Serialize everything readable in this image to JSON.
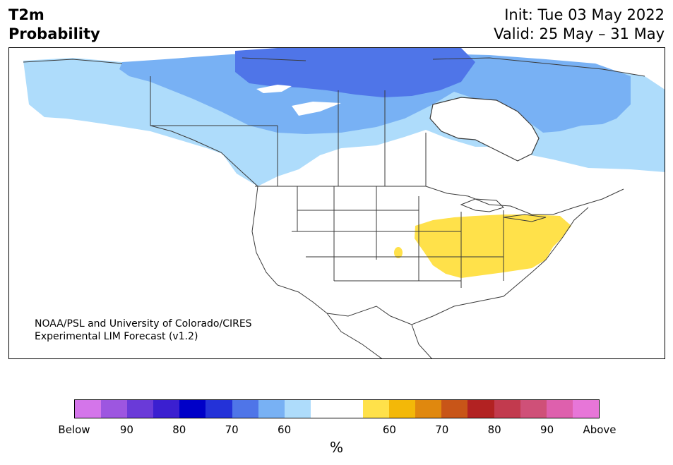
{
  "title": {
    "line1": "T2m",
    "line2": "Probability"
  },
  "header_right": {
    "init": "Init: Tue 03 May 2022",
    "valid": "Valid: 25 May – 31 May"
  },
  "credit": {
    "line1": "NOAA/PSL and University of Colorado/CIRES",
    "line2": "Experimental LIM Forecast (v1.2)"
  },
  "colorbar": {
    "colors": [
      "#d475ea",
      "#9d56e0",
      "#6a3ad8",
      "#3b1fd0",
      "#0000c8",
      "#2432d8",
      "#4f75e8",
      "#78b1f4",
      "#aedcfb",
      "#ffffff",
      "#ffffff",
      "#ffe14a",
      "#f3b808",
      "#e0880e",
      "#c85518",
      "#b22222",
      "#c23a4e",
      "#cf5078",
      "#de60ad",
      "#e776d8"
    ],
    "ticks": [
      "Below",
      "90",
      "80",
      "70",
      "60",
      "60",
      "70",
      "80",
      "90",
      "Above"
    ],
    "unit": "%"
  },
  "map_colors": {
    "land": "#fdfdfd",
    "border": "#3a3a3a",
    "below_60": "#aedcfb",
    "below_70": "#78b1f4",
    "below_80": "#4f75e8",
    "above_60": "#ffe14a"
  }
}
